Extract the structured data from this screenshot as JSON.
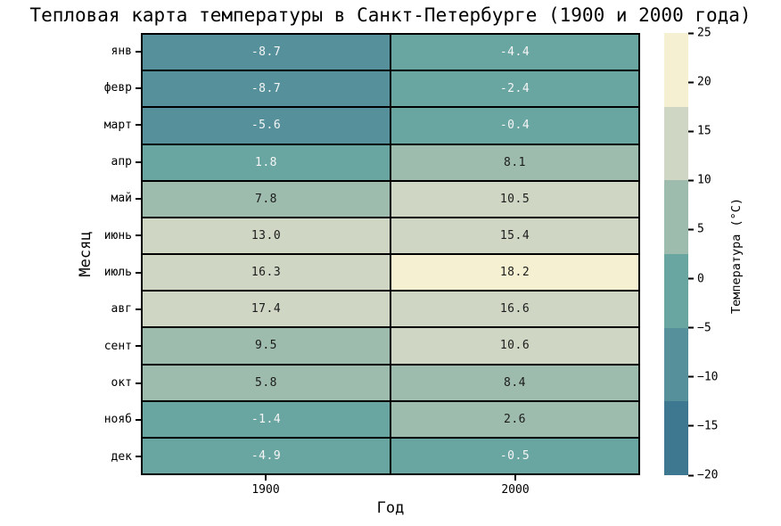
{
  "title": "Тепловая карта температуры в Санкт-Петербурге (1900 и 2000 года)",
  "axes": {
    "xlabel": "Год",
    "ylabel": "Месяц"
  },
  "colorbar": {
    "label": "Температура (°C)",
    "ticks": [
      25,
      20,
      15,
      10,
      5,
      0,
      -5,
      -10,
      -15,
      -20
    ],
    "vmin": -20,
    "vmax": 25,
    "band_edges": [
      25,
      17.5,
      10,
      2.5,
      -5,
      -12.5,
      -20
    ],
    "band_colors": [
      "#f5f0d1",
      "#cfd6c4",
      "#9ebcad",
      "#6aa6a1",
      "#55909b",
      "#3d7890"
    ]
  },
  "text_colors": {
    "dark_annotation": "#1c1c1c",
    "light_annotation": "#f5f5f5",
    "axis_text": "#000000"
  },
  "chart_data": {
    "type": "heatmap",
    "title": "Тепловая карта температуры в Санкт-Петербурге (1900 и 2000 года)",
    "xlabel": "Год",
    "ylabel": "Месяц",
    "rows": [
      "янв",
      "февр",
      "март",
      "апр",
      "май",
      "июнь",
      "июль",
      "авг",
      "сент",
      "окт",
      "нояб",
      "дек"
    ],
    "columns": [
      "1900",
      "2000"
    ],
    "series": [
      {
        "name": "1900",
        "values": [
          -8.7,
          -8.7,
          -5.6,
          1.8,
          7.8,
          13.0,
          16.3,
          17.4,
          9.5,
          5.8,
          -1.4,
          -4.9
        ]
      },
      {
        "name": "2000",
        "values": [
          -4.4,
          -2.4,
          -0.4,
          8.1,
          10.5,
          15.4,
          18.2,
          16.6,
          10.6,
          8.4,
          2.6,
          -0.5
        ]
      }
    ],
    "value_format": "one_decimal",
    "colormap_bands": 6,
    "colorbar_label": "Температура (°C)",
    "colorbar_range": [
      -20,
      25
    ],
    "grid_line_color": "#000000",
    "legend_position": "right-colorbar"
  }
}
